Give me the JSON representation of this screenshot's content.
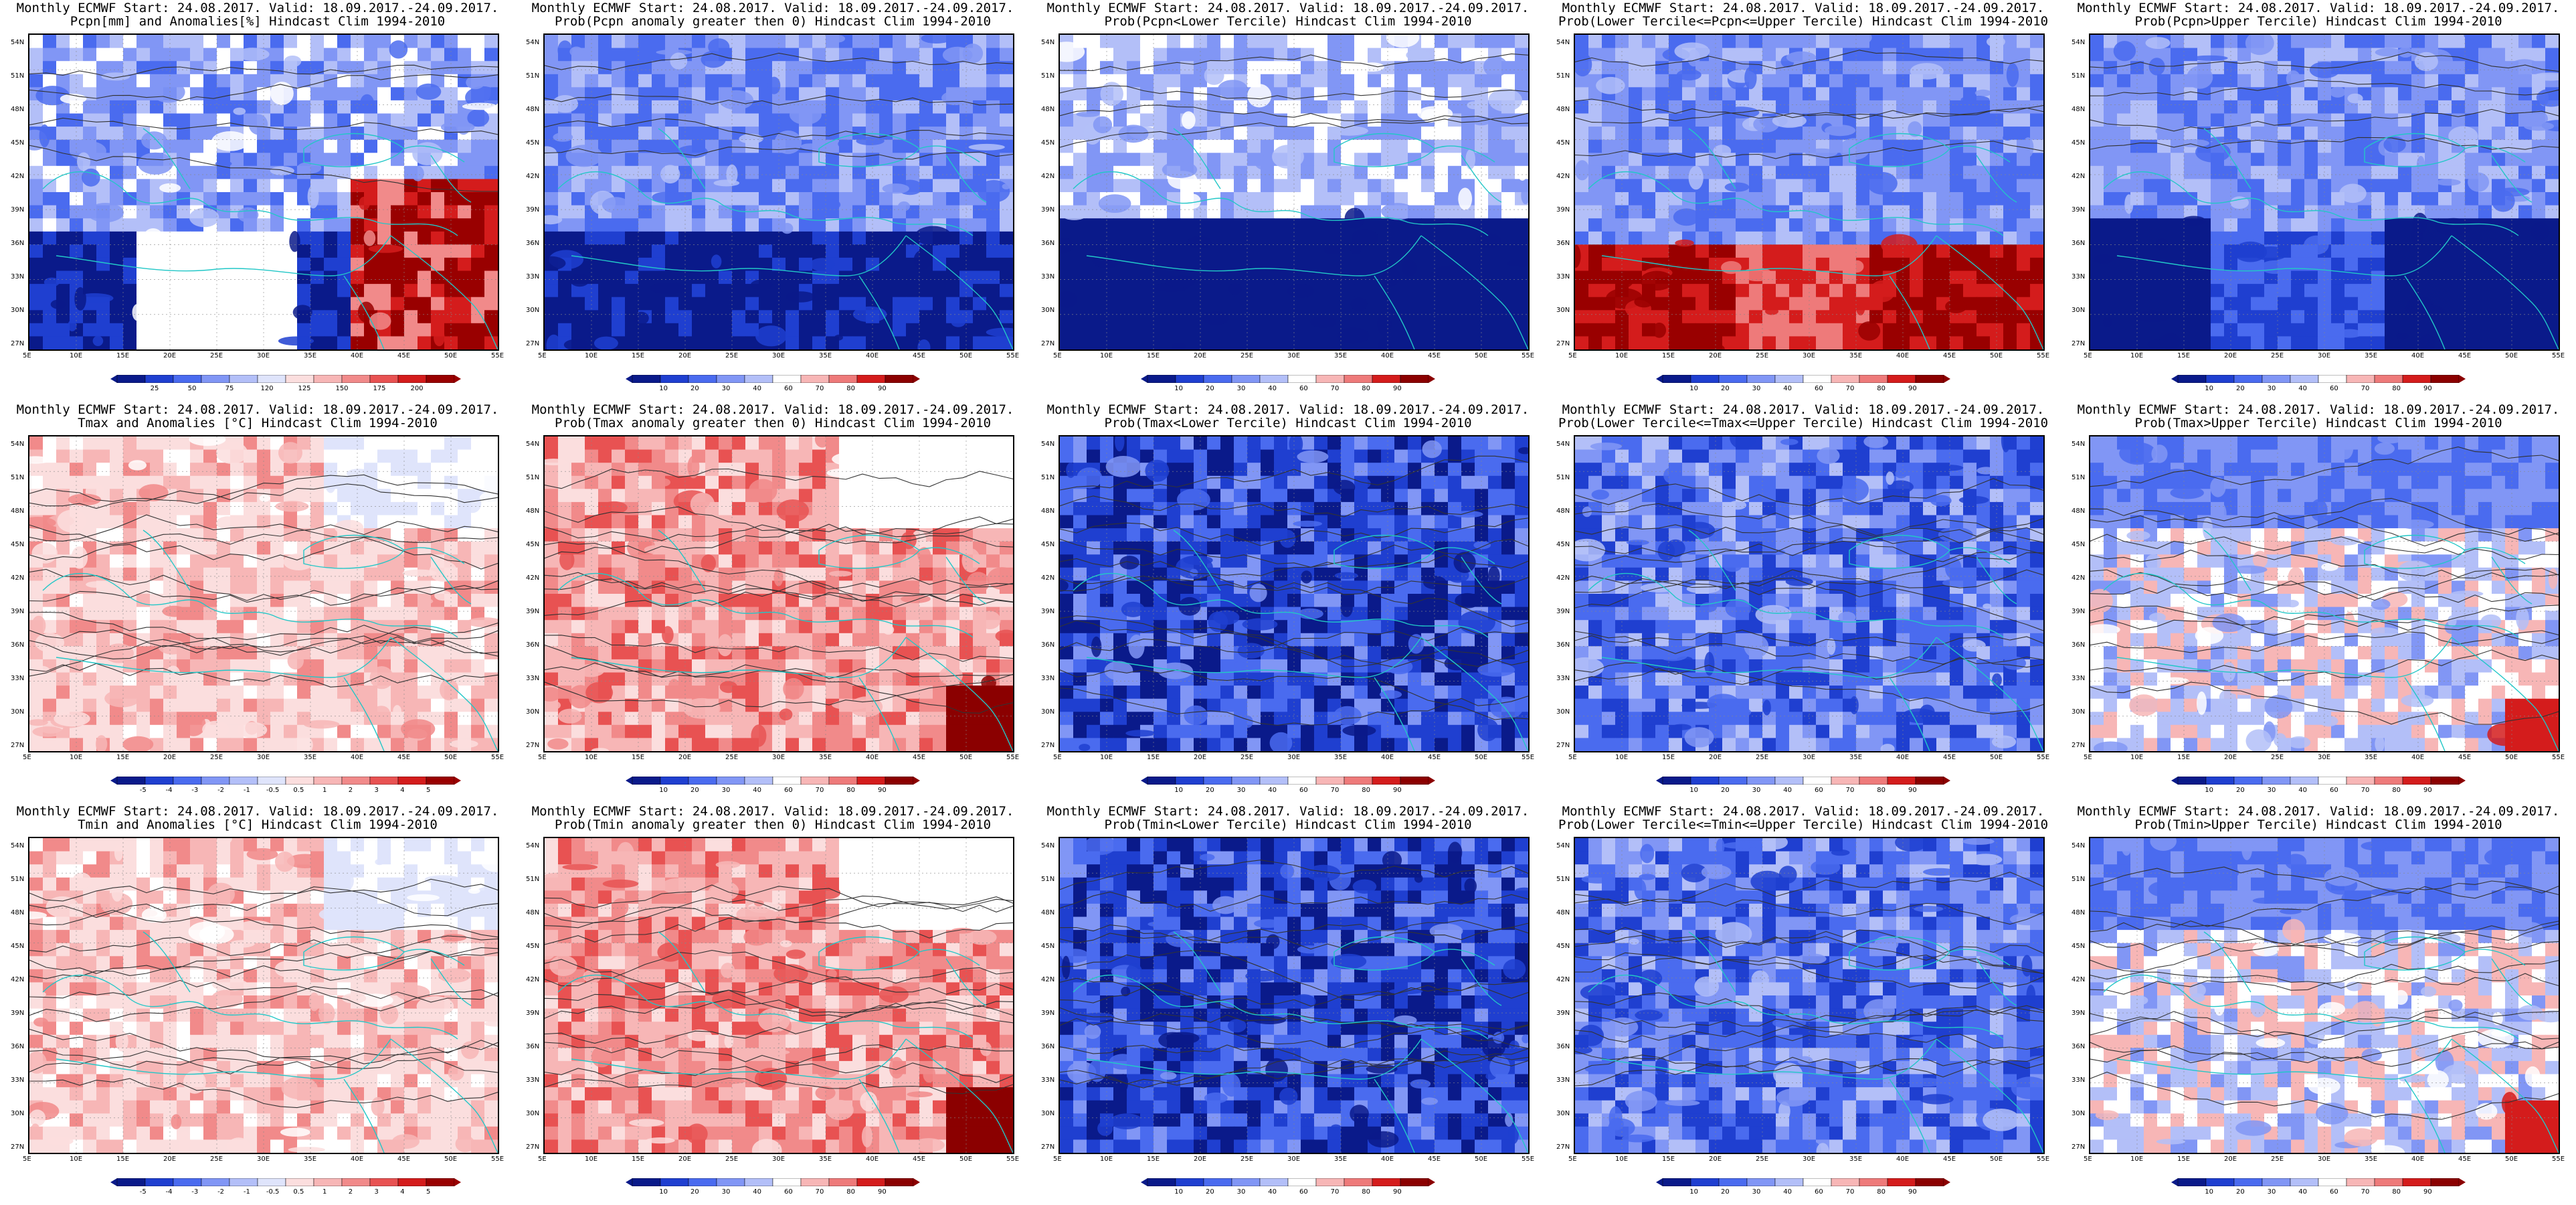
{
  "figure": {
    "common_title": "Monthly ECMWF Start: 24.08.2017. Valid: 18.09.2017.-24.09.2017.",
    "lat_ticks": [
      "54N",
      "51N",
      "48N",
      "45N",
      "42N",
      "39N",
      "36N",
      "33N",
      "30N",
      "27N"
    ],
    "lon_ticks": [
      "5E",
      "10E",
      "15E",
      "20E",
      "25E",
      "30E",
      "35E",
      "40E",
      "45E",
      "50E",
      "55E"
    ],
    "colors": {
      "contour": "#333333",
      "coast": "#22c7c7",
      "neg_anomaly_ramp": [
        "#0a1a8a",
        "#1f3fd0",
        "#4a6bef",
        "#8196f5",
        "#b3bff8",
        "#dfe4fb"
      ],
      "pos_anomaly_ramp": [
        "#fbdede",
        "#f7b6b6",
        "#f18a8a",
        "#e85252",
        "#d41c1c",
        "#990000"
      ],
      "prob_ramp": [
        "#0a1a8a",
        "#1f3fd0",
        "#4a6bef",
        "#8196f5",
        "#b3bff8",
        "#ffffff",
        "#f7b6b6",
        "#ee7a7a",
        "#d41c1c",
        "#8b0000"
      ]
    },
    "panels": [
      {
        "title2": "Pcpn[mm] and Anomalies[%] Hindcast Clim 1994-2010",
        "theme": "pcpn_anom",
        "legend": [
          "25",
          "50",
          "75",
          "120",
          "125",
          "150",
          "175",
          "200"
        ]
      },
      {
        "title2": "Prob(Pcpn anomaly greater then 0) Hindcast Clim 1994-2010",
        "theme": "pcpn_prob_pos",
        "legend": [
          "10",
          "20",
          "30",
          "40",
          "60",
          "70",
          "80",
          "90"
        ]
      },
      {
        "title2": "Prob(Pcpn<Lower Tercile) Hindcast Clim 1994-2010",
        "theme": "pcpn_lower",
        "legend": [
          "10",
          "20",
          "30",
          "40",
          "60",
          "70",
          "80",
          "90"
        ]
      },
      {
        "title2": "Prob(Lower Tercile<=Pcpn<=Upper Tercile) Hindcast Clim 1994-2010",
        "theme": "pcpn_mid",
        "legend": [
          "10",
          "20",
          "30",
          "40",
          "60",
          "70",
          "80",
          "90"
        ]
      },
      {
        "title2": "Prob(Pcpn>Upper Tercile) Hindcast Clim 1994-2010",
        "theme": "pcpn_upper",
        "legend": [
          "10",
          "20",
          "30",
          "40",
          "60",
          "70",
          "80",
          "90"
        ]
      },
      {
        "title2": "Tmax and Anomalies [°C] Hindcast Clim 1994-2010",
        "theme": "t_anom",
        "legend": [
          "-5",
          "-4",
          "-3",
          "-2",
          "-1",
          "-0.5",
          "0.5",
          "1",
          "2",
          "3",
          "4",
          "5"
        ]
      },
      {
        "title2": "Prob(Tmax anomaly greater then 0) Hindcast Clim 1994-2010",
        "theme": "t_prob_pos",
        "legend": [
          "10",
          "20",
          "30",
          "40",
          "60",
          "70",
          "80",
          "90"
        ]
      },
      {
        "title2": "Prob(Tmax<Lower Tercile) Hindcast Clim 1994-2010",
        "theme": "t_lower",
        "legend": [
          "10",
          "20",
          "30",
          "40",
          "60",
          "70",
          "80",
          "90"
        ]
      },
      {
        "title2": "Prob(Lower Tercile<=Tmax<=Upper Tercile) Hindcast Clim 1994-2010",
        "theme": "t_mid",
        "legend": [
          "10",
          "20",
          "30",
          "40",
          "60",
          "70",
          "80",
          "90"
        ]
      },
      {
        "title2": "Prob(Tmax>Upper Tercile) Hindcast Clim 1994-2010",
        "theme": "t_upper",
        "legend": [
          "10",
          "20",
          "30",
          "40",
          "60",
          "70",
          "80",
          "90"
        ]
      },
      {
        "title2": "Tmin and Anomalies [°C] Hindcast Clim 1994-2010",
        "theme": "t_anom",
        "legend": [
          "-5",
          "-4",
          "-3",
          "-2",
          "-1",
          "-0.5",
          "0.5",
          "1",
          "2",
          "3",
          "4",
          "5"
        ]
      },
      {
        "title2": "Prob(Tmin anomaly greater then 0) Hindcast Clim 1994-2010",
        "theme": "t_prob_pos",
        "legend": [
          "10",
          "20",
          "30",
          "40",
          "60",
          "70",
          "80",
          "90"
        ]
      },
      {
        "title2": "Prob(Tmin<Lower Tercile) Hindcast Clim 1994-2010",
        "theme": "t_lower",
        "legend": [
          "10",
          "20",
          "30",
          "40",
          "60",
          "70",
          "80",
          "90"
        ]
      },
      {
        "title2": "Prob(Lower Tercile<=Tmin<=Upper Tercile) Hindcast Clim 1994-2010",
        "theme": "t_mid",
        "legend": [
          "10",
          "20",
          "30",
          "40",
          "60",
          "70",
          "80",
          "90"
        ]
      },
      {
        "title2": "Prob(Tmin>Upper Tercile) Hindcast Clim 1994-2010",
        "theme": "t_upper",
        "legend": [
          "10",
          "20",
          "30",
          "40",
          "60",
          "70",
          "80",
          "90"
        ]
      }
    ]
  }
}
